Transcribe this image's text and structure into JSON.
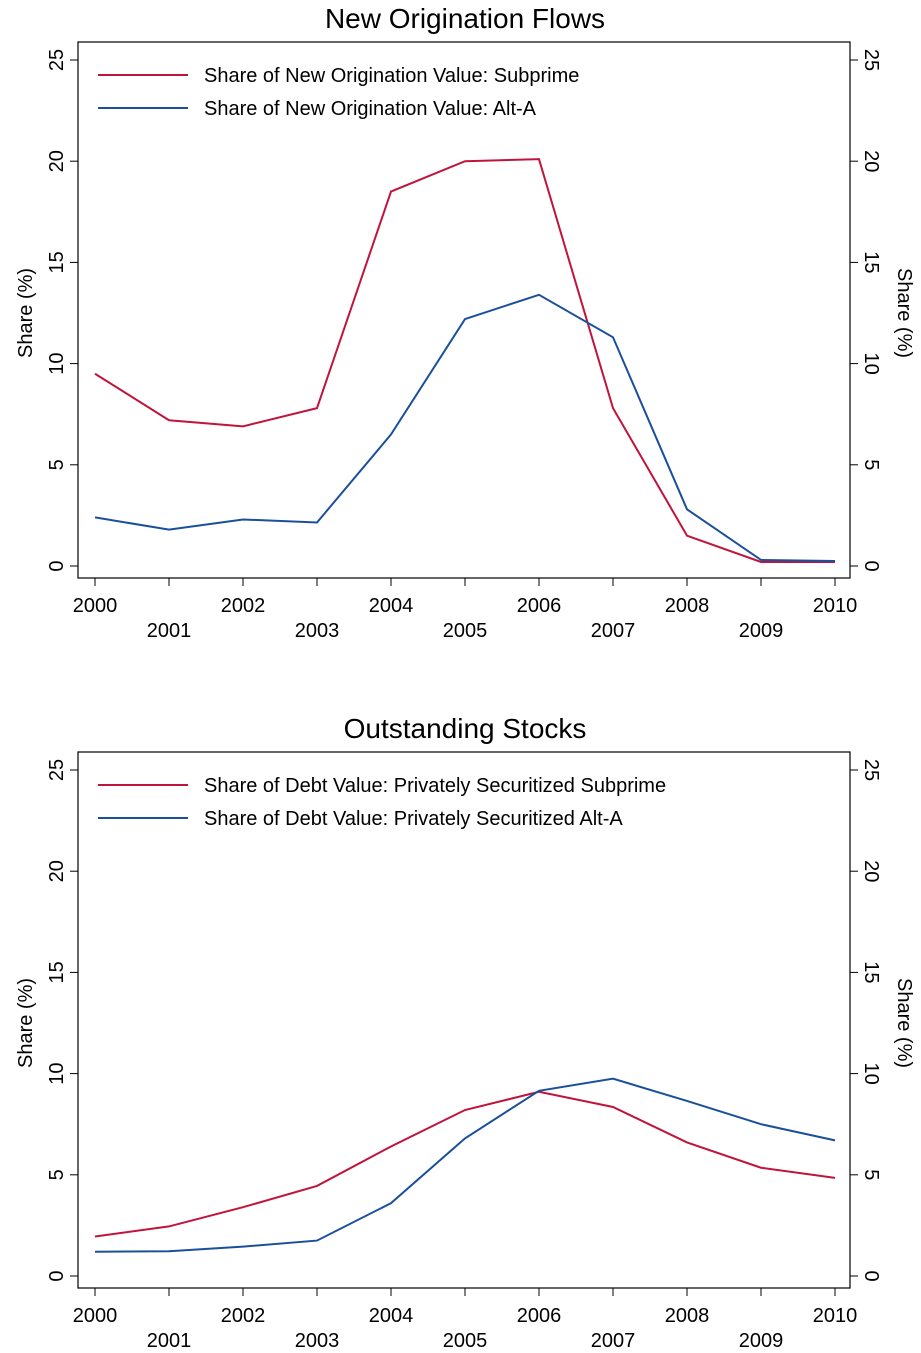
{
  "chart_data": [
    {
      "type": "line",
      "title": "New Origination Flows",
      "ylabel": "Share (%)",
      "y2label": "Share (%)",
      "x": [
        2000,
        2001,
        2002,
        2003,
        2004,
        2005,
        2006,
        2007,
        2008,
        2009,
        2010
      ],
      "xlim": [
        2000,
        2010
      ],
      "xticks": [
        2000,
        2001,
        2002,
        2003,
        2004,
        2005,
        2006,
        2007,
        2008,
        2009,
        2010
      ],
      "ylim": [
        0,
        25
      ],
      "yticks": [
        0,
        5,
        10,
        15,
        20,
        25
      ],
      "y2lim": [
        0,
        25
      ],
      "y2ticks": [
        0,
        5,
        10,
        15,
        20,
        25
      ],
      "series": [
        {
          "name": "Share of New Origination Value: Subprime",
          "color": "#c0143c",
          "values": [
            9.5,
            7.2,
            6.9,
            7.8,
            18.5,
            20.0,
            20.1,
            7.8,
            1.5,
            0.2,
            0.2
          ]
        },
        {
          "name": "Share of New Origination Value: Alt-A",
          "color": "#1a4f9c",
          "values": [
            2.4,
            1.8,
            2.3,
            2.15,
            6.5,
            12.2,
            13.4,
            11.3,
            2.8,
            0.3,
            0.25
          ]
        }
      ]
    },
    {
      "type": "line",
      "title": "Outstanding Stocks",
      "ylabel": "Share (%)",
      "y2label": "Share (%)",
      "x": [
        2000,
        2001,
        2002,
        2003,
        2004,
        2005,
        2006,
        2007,
        2008,
        2009,
        2010
      ],
      "xlim": [
        2000,
        2010
      ],
      "xticks": [
        2000,
        2001,
        2002,
        2003,
        2004,
        2005,
        2006,
        2007,
        2008,
        2009,
        2010
      ],
      "ylim": [
        0,
        25
      ],
      "yticks": [
        0,
        5,
        10,
        15,
        20,
        25
      ],
      "y2lim": [
        0,
        25
      ],
      "y2ticks": [
        0,
        5,
        10,
        15,
        20,
        25
      ],
      "series": [
        {
          "name": "Share of Debt Value: Privately Securitized Subprime",
          "color": "#c0143c",
          "values": [
            1.95,
            2.45,
            3.4,
            4.45,
            6.4,
            8.2,
            9.1,
            8.35,
            6.6,
            5.35,
            4.85
          ]
        },
        {
          "name": "Share of Debt Value: Privately Securitized Alt-A",
          "color": "#1a4f9c",
          "values": [
            1.2,
            1.22,
            1.45,
            1.75,
            3.6,
            6.8,
            9.15,
            9.75,
            8.65,
            7.5,
            6.7
          ]
        }
      ]
    }
  ]
}
